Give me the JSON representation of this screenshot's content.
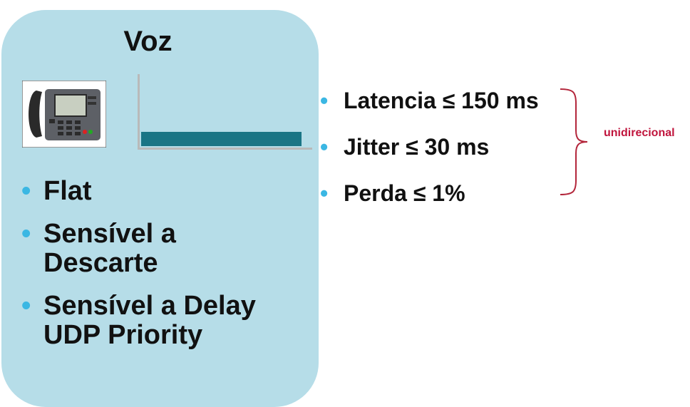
{
  "panel": {
    "title": "Voz",
    "bullets": [
      {
        "line1": "Flat",
        "line2": ""
      },
      {
        "line1": "Sensível a",
        "line2": "Descarte"
      },
      {
        "line1": "Sensível a Delay",
        "line2": "UDP Priority"
      }
    ]
  },
  "requirements": [
    "Latencia ≤ 150 ms",
    "Jitter ≤ 30 ms",
    "Perda ≤ 1%"
  ],
  "brace_label": "unidirecional",
  "bullet_glyph": "•",
  "icons": {
    "phone": "ip-phone-icon"
  },
  "colors": {
    "panel": "#b6dde8",
    "bar": "#1a7585",
    "bullet": "#3bb7e3",
    "brace": "#b3263b",
    "label": "#c0143c"
  }
}
